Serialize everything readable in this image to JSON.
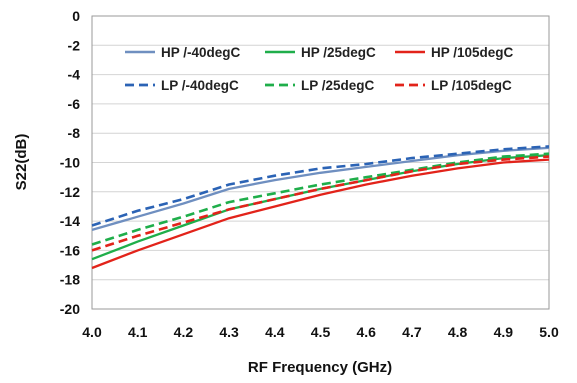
{
  "chart_data": {
    "type": "line",
    "title": "",
    "xlabel": "RF Frequency (GHz)",
    "ylabel": "S22(dB)",
    "xlim": [
      4.0,
      5.0
    ],
    "ylim": [
      -20,
      0
    ],
    "xticks": [
      "4.0",
      "4.1",
      "4.2",
      "4.3",
      "4.4",
      "4.5",
      "4.6",
      "4.7",
      "4.8",
      "4.9",
      "5.0"
    ],
    "yticks": [
      "0",
      "-2",
      "-4",
      "-6",
      "-8",
      "-10",
      "-12",
      "-14",
      "-16",
      "-18",
      "-20"
    ],
    "grid": "horizontal",
    "legend_position": "top",
    "x": [
      4.0,
      4.1,
      4.2,
      4.3,
      4.4,
      4.5,
      4.6,
      4.7,
      4.8,
      4.9,
      5.0
    ],
    "series": [
      {
        "name": "HP /-40degC",
        "color": "#6f8fc0",
        "dash": "solid",
        "values": [
          -14.6,
          -13.7,
          -12.8,
          -11.8,
          -11.2,
          -10.7,
          -10.3,
          -9.9,
          -9.5,
          -9.2,
          -9.0
        ]
      },
      {
        "name": "HP /25degC",
        "color": "#1fae4a",
        "dash": "solid",
        "values": [
          -16.6,
          -15.4,
          -14.3,
          -13.2,
          -12.5,
          -11.8,
          -11.2,
          -10.6,
          -10.1,
          -9.7,
          -9.5
        ]
      },
      {
        "name": "HP /105degC",
        "color": "#e2231a",
        "dash": "solid",
        "values": [
          -17.2,
          -16.0,
          -14.9,
          -13.8,
          -13.0,
          -12.2,
          -11.5,
          -10.9,
          -10.4,
          -10.0,
          -9.8
        ]
      },
      {
        "name": "LP /-40degC",
        "color": "#2b63b5",
        "dash": "dashed",
        "values": [
          -14.3,
          -13.3,
          -12.5,
          -11.5,
          -10.9,
          -10.4,
          -10.1,
          -9.7,
          -9.4,
          -9.1,
          -8.9
        ]
      },
      {
        "name": "LP /25degC",
        "color": "#1fae4a",
        "dash": "dashed",
        "values": [
          -15.6,
          -14.6,
          -13.7,
          -12.7,
          -12.1,
          -11.5,
          -11.0,
          -10.5,
          -10.0,
          -9.6,
          -9.4
        ]
      },
      {
        "name": "LP /105degC",
        "color": "#e2231a",
        "dash": "dashed",
        "values": [
          -16.0,
          -15.0,
          -14.1,
          -13.2,
          -12.5,
          -11.8,
          -11.2,
          -10.6,
          -10.1,
          -9.8,
          -9.6
        ]
      }
    ]
  }
}
